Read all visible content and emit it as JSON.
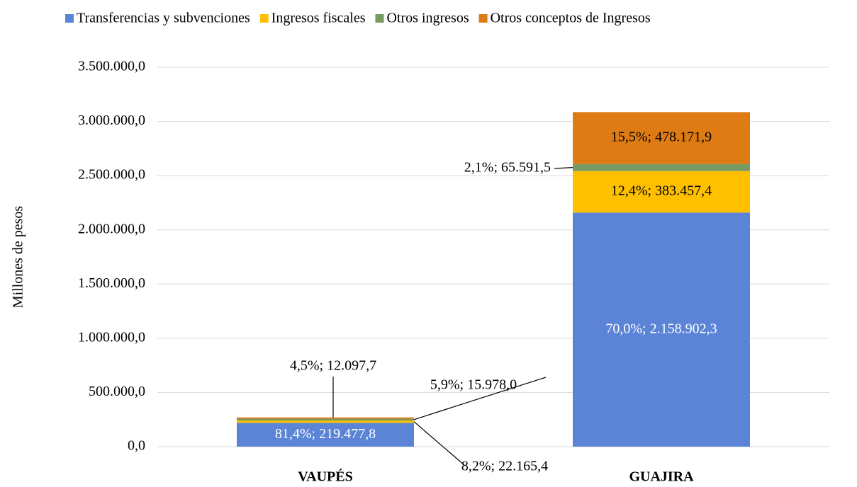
{
  "chart_data": {
    "type": "stacked_bar",
    "y_label": "Millones  de pesos",
    "categories": [
      "VAUPÉS",
      "GUAJIRA"
    ],
    "series": [
      {
        "name": "Transferencias y subvenciones",
        "color": "#5b84d6",
        "values": [
          219477.8,
          2158902.3
        ],
        "value_labels": [
          "81,4%; 219.477,8",
          "70,0%; 2.158.902,3"
        ]
      },
      {
        "name": "Ingresos fiscales",
        "color": "#ffc000",
        "values": [
          22165.4,
          383457.4
        ],
        "value_labels": [
          "8,2%; 22.165,4",
          "12,4%; 383.457,4"
        ]
      },
      {
        "name": "Otros ingresos",
        "color": "#779a62",
        "values": [
          15978.0,
          65591.5
        ],
        "value_labels": [
          "5,9%; 15.978,0",
          "2,1%; 65.591,5"
        ]
      },
      {
        "name": "Otros conceptos de Ingresos",
        "color": "#df7b14",
        "values": [
          12097.7,
          478171.9
        ],
        "value_labels": [
          "4,5%; 12.097,7",
          "15,5%; 478.171,9"
        ]
      }
    ],
    "ylim": [
      0,
      3500000
    ],
    "yticks": [
      {
        "value": 0,
        "label": "0,0"
      },
      {
        "value": 500000,
        "label": "500.000,0"
      },
      {
        "value": 1000000,
        "label": "1.000.000,0"
      },
      {
        "value": 1500000,
        "label": "1.500.000,0"
      },
      {
        "value": 2000000,
        "label": "2.000.000,0"
      },
      {
        "value": 2500000,
        "label": "2.500.000,0"
      },
      {
        "value": 3000000,
        "label": "3.000.000,0"
      },
      {
        "value": 3500000,
        "label": "3.500.000,0"
      }
    ],
    "grid": true,
    "legend": "top"
  }
}
